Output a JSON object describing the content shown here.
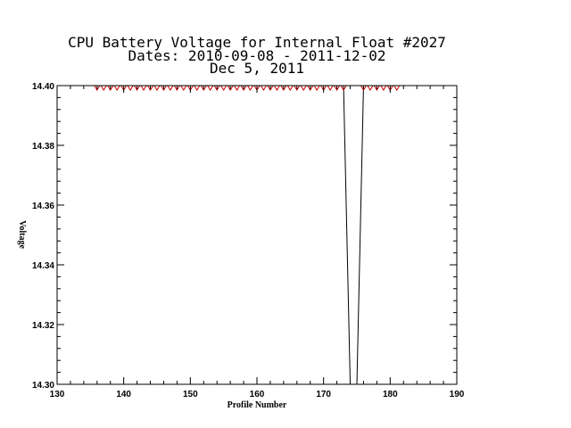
{
  "chart_data": {
    "type": "line",
    "title_lines": [
      "CPU Battery Voltage for Internal Float #2027",
      "Dates:  2010-09-08 -  2011-12-02",
      "Dec  5, 2011"
    ],
    "xlabel": "Profile Number",
    "ylabel": "Voltage",
    "xlim": [
      130,
      190
    ],
    "ylim": [
      14.3,
      14.4
    ],
    "x_ticks": [
      130,
      140,
      150,
      160,
      170,
      180,
      190
    ],
    "x_tick_labels": [
      "130",
      "140",
      "150",
      "160",
      "170",
      "180",
      "190"
    ],
    "y_ticks": [
      14.3,
      14.32,
      14.34,
      14.36,
      14.38,
      14.4
    ],
    "y_tick_labels": [
      "14.30",
      "14.32",
      "14.34",
      "14.36",
      "14.38",
      "14.40"
    ],
    "grid": false,
    "line_color": "#000000",
    "marker_color": "#cc0000",
    "marker": "triangle-down",
    "series": [
      {
        "x": [
          136,
          137,
          138,
          139,
          140,
          141,
          142,
          143,
          144,
          145,
          146,
          147,
          148,
          149,
          150,
          151,
          152,
          153,
          154,
          155,
          156,
          157,
          158,
          159,
          160,
          161,
          162,
          163,
          164,
          165,
          166,
          167,
          168,
          169,
          170,
          171,
          172,
          173,
          174,
          175,
          176,
          177,
          178,
          179,
          180,
          181
        ],
        "values": [
          14.4,
          14.4,
          14.4,
          14.4,
          14.4,
          14.4,
          14.4,
          14.4,
          14.4,
          14.4,
          14.4,
          14.4,
          14.4,
          14.4,
          14.4,
          14.4,
          14.4,
          14.4,
          14.4,
          14.4,
          14.4,
          14.4,
          14.4,
          14.4,
          14.4,
          14.4,
          14.4,
          14.4,
          14.4,
          14.4,
          14.4,
          14.4,
          14.4,
          14.4,
          14.4,
          14.4,
          14.4,
          14.4,
          14.3,
          14.3,
          14.4,
          14.4,
          14.4,
          14.4,
          14.4,
          14.4
        ]
      }
    ]
  }
}
